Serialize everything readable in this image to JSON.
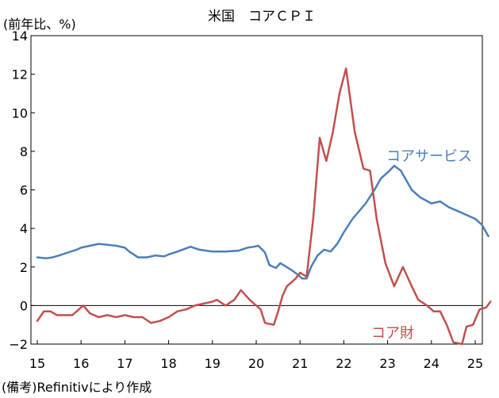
{
  "chart_data": {
    "type": "line",
    "title": "米国　コアＣＰＩ",
    "ylabel": "(前年比、%)",
    "source": "(備考)Refinitivにより作成",
    "ylim": [
      -2,
      14
    ],
    "yticks": [
      -2,
      0,
      2,
      4,
      6,
      8,
      10,
      12,
      14
    ],
    "xlim": [
      2015,
      2025.5
    ],
    "xticks": [
      "15",
      "16",
      "17",
      "18",
      "19",
      "20",
      "21",
      "22",
      "23",
      "24",
      "25"
    ],
    "grid": false,
    "zero_line": true,
    "series": [
      {
        "name": "コアサービス",
        "color": "#4a7ebb",
        "points": [
          [
            2015.0,
            2.5
          ],
          [
            2015.2,
            2.45
          ],
          [
            2015.35,
            2.5
          ],
          [
            2015.5,
            2.6
          ],
          [
            2015.7,
            2.75
          ],
          [
            2015.9,
            2.9
          ],
          [
            2016.0,
            3.0
          ],
          [
            2016.2,
            3.1
          ],
          [
            2016.4,
            3.2
          ],
          [
            2016.6,
            3.15
          ],
          [
            2016.8,
            3.1
          ],
          [
            2017.0,
            3.0
          ],
          [
            2017.1,
            2.8
          ],
          [
            2017.3,
            2.5
          ],
          [
            2017.5,
            2.5
          ],
          [
            2017.7,
            2.6
          ],
          [
            2017.9,
            2.55
          ],
          [
            2018.0,
            2.65
          ],
          [
            2018.2,
            2.8
          ],
          [
            2018.5,
            3.05
          ],
          [
            2018.7,
            2.9
          ],
          [
            2019.0,
            2.8
          ],
          [
            2019.3,
            2.8
          ],
          [
            2019.6,
            2.85
          ],
          [
            2019.8,
            3.0
          ],
          [
            2019.95,
            3.05
          ],
          [
            2020.05,
            3.1
          ],
          [
            2020.2,
            2.75
          ],
          [
            2020.3,
            2.1
          ],
          [
            2020.45,
            1.95
          ],
          [
            2020.55,
            2.2
          ],
          [
            2020.8,
            1.85
          ],
          [
            2020.95,
            1.6
          ],
          [
            2021.05,
            1.4
          ],
          [
            2021.15,
            1.4
          ],
          [
            2021.25,
            2.0
          ],
          [
            2021.4,
            2.6
          ],
          [
            2021.55,
            2.9
          ],
          [
            2021.7,
            2.8
          ],
          [
            2021.85,
            3.2
          ],
          [
            2022.0,
            3.8
          ],
          [
            2022.2,
            4.5
          ],
          [
            2022.5,
            5.3
          ],
          [
            2022.7,
            6.0
          ],
          [
            2022.85,
            6.6
          ],
          [
            2023.0,
            6.9
          ],
          [
            2023.15,
            7.25
          ],
          [
            2023.3,
            7.0
          ],
          [
            2023.55,
            6.0
          ],
          [
            2023.75,
            5.6
          ],
          [
            2024.0,
            5.3
          ],
          [
            2024.2,
            5.4
          ],
          [
            2024.4,
            5.1
          ],
          [
            2024.6,
            4.9
          ],
          [
            2024.8,
            4.7
          ],
          [
            2025.0,
            4.5
          ],
          [
            2025.15,
            4.2
          ],
          [
            2025.3,
            3.6
          ]
        ]
      },
      {
        "name": "コア財",
        "color": "#c0504d",
        "points": [
          [
            2015.0,
            -0.8
          ],
          [
            2015.15,
            -0.3
          ],
          [
            2015.3,
            -0.3
          ],
          [
            2015.45,
            -0.5
          ],
          [
            2015.65,
            -0.5
          ],
          [
            2015.8,
            -0.5
          ],
          [
            2015.95,
            -0.2
          ],
          [
            2016.05,
            0.0
          ],
          [
            2016.2,
            -0.4
          ],
          [
            2016.4,
            -0.6
          ],
          [
            2016.6,
            -0.5
          ],
          [
            2016.8,
            -0.6
          ],
          [
            2017.0,
            -0.5
          ],
          [
            2017.2,
            -0.6
          ],
          [
            2017.4,
            -0.6
          ],
          [
            2017.6,
            -0.9
          ],
          [
            2017.8,
            -0.8
          ],
          [
            2018.0,
            -0.6
          ],
          [
            2018.2,
            -0.3
          ],
          [
            2018.4,
            -0.2
          ],
          [
            2018.6,
            0.0
          ],
          [
            2018.8,
            0.1
          ],
          [
            2019.0,
            0.2
          ],
          [
            2019.1,
            0.3
          ],
          [
            2019.3,
            0.0
          ],
          [
            2019.5,
            0.3
          ],
          [
            2019.65,
            0.8
          ],
          [
            2019.85,
            0.3
          ],
          [
            2020.0,
            0.0
          ],
          [
            2020.1,
            -0.2
          ],
          [
            2020.2,
            -0.9
          ],
          [
            2020.4,
            -1.0
          ],
          [
            2020.5,
            -0.3
          ],
          [
            2020.6,
            0.5
          ],
          [
            2020.7,
            1.0
          ],
          [
            2020.9,
            1.4
          ],
          [
            2021.0,
            1.7
          ],
          [
            2021.15,
            1.5
          ],
          [
            2021.3,
            4.5
          ],
          [
            2021.45,
            8.7
          ],
          [
            2021.6,
            7.5
          ],
          [
            2021.75,
            9.0
          ],
          [
            2021.9,
            11.0
          ],
          [
            2022.05,
            12.3
          ],
          [
            2022.25,
            9.0
          ],
          [
            2022.45,
            7.1
          ],
          [
            2022.6,
            7.0
          ],
          [
            2022.75,
            4.5
          ],
          [
            2022.95,
            2.2
          ],
          [
            2023.15,
            1.0
          ],
          [
            2023.35,
            2.0
          ],
          [
            2023.55,
            1.0
          ],
          [
            2023.7,
            0.3
          ],
          [
            2023.9,
            0.0
          ],
          [
            2024.05,
            -0.3
          ],
          [
            2024.2,
            -0.3
          ],
          [
            2024.35,
            -1.0
          ],
          [
            2024.5,
            -1.9
          ],
          [
            2024.7,
            -2.0
          ],
          [
            2024.8,
            -1.1
          ],
          [
            2024.95,
            -1.0
          ],
          [
            2025.1,
            -0.2
          ],
          [
            2025.25,
            -0.1
          ],
          [
            2025.35,
            0.2
          ]
        ]
      }
    ],
    "labels": {
      "services": "コアサービス",
      "goods": "コア財"
    }
  }
}
